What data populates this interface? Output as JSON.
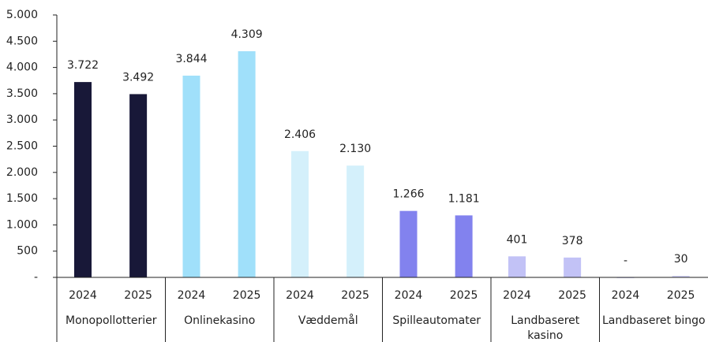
{
  "chart_data": {
    "type": "bar",
    "ylim": [
      0,
      5000
    ],
    "yticks": [
      {
        "value": 0,
        "label": "-"
      },
      500,
      {
        "value": 1000,
        "label": "1.000"
      },
      {
        "value": 1500,
        "label": "1.500"
      },
      {
        "value": 2000,
        "label": "2.000"
      },
      {
        "value": 2500,
        "label": "2.500"
      },
      {
        "value": 3000,
        "label": "3.000"
      },
      {
        "value": 3500,
        "label": "3.500"
      },
      {
        "value": 4000,
        "label": "4.000"
      },
      {
        "value": 4500,
        "label": "4.500"
      },
      {
        "value": 5000,
        "label": "5.000"
      }
    ],
    "groups": [
      {
        "name": "Monopollotterier",
        "color": "#181838",
        "categories": [
          "2024",
          "2025"
        ],
        "values": [
          3722,
          3492
        ],
        "value_labels": [
          "3.722",
          "3.492"
        ]
      },
      {
        "name": "Onlinekasino",
        "color": "#a0e0fa",
        "categories": [
          "2024",
          "2025"
        ],
        "values": [
          3844,
          4309
        ],
        "value_labels": [
          "3.844",
          "4.309"
        ]
      },
      {
        "name": "Væddemål",
        "color": "#d4f0fb",
        "categories": [
          "2024",
          "2025"
        ],
        "values": [
          2406,
          2130
        ],
        "value_labels": [
          "2.406",
          "2.130"
        ]
      },
      {
        "name": "Spilleautomater",
        "color": "#8282ee",
        "categories": [
          "2024",
          "2025"
        ],
        "values": [
          1266,
          1181
        ],
        "value_labels": [
          "1.266",
          "1.181"
        ]
      },
      {
        "name": "Landbaseret\nkasino",
        "color": "#c2c2f6",
        "categories": [
          "2024",
          "2025"
        ],
        "values": [
          401,
          378
        ],
        "value_labels": [
          "401",
          "378"
        ]
      },
      {
        "name": "Landbaseret bingo",
        "color": "#d2d2f6",
        "categories": [
          "2024",
          "2025"
        ],
        "values": [
          0,
          30
        ],
        "value_labels": [
          "-",
          "30"
        ]
      }
    ]
  }
}
